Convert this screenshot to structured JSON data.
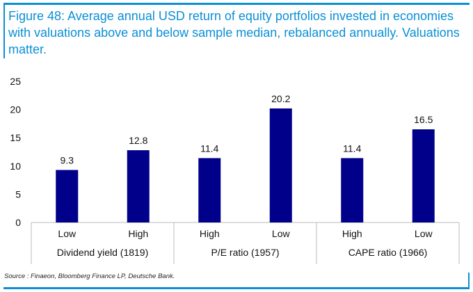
{
  "title": "Figure 48: Average annual USD return of equity portfolios invested in economies with valuations above and below sample median, rebalanced annually. Valuations matter.",
  "source": "Source : Finaeon, Bloomberg Finance LP, Deutsche Bank.",
  "chart_data": {
    "type": "bar",
    "title": "Figure 48: Average annual USD return of equity portfolios invested in economies with valuations above and below sample median, rebalanced annually. Valuations matter.",
    "categories": [
      "Low",
      "High",
      "High",
      "Low",
      "High",
      "Low"
    ],
    "groups": [
      {
        "label": "Dividend yield (1819)",
        "size": 2
      },
      {
        "label": "P/E ratio (1957)",
        "size": 2
      },
      {
        "label": "CAPE ratio (1966)",
        "size": 2
      }
    ],
    "values": [
      9.3,
      12.8,
      11.4,
      20.2,
      11.4,
      16.5
    ],
    "data_labels": [
      "9.3",
      "12.8",
      "11.4",
      "20.2",
      "11.4",
      "16.5"
    ],
    "ylim": [
      0,
      25
    ],
    "yticks": [
      "0",
      "5",
      "10",
      "15",
      "20",
      "25"
    ],
    "grid": false,
    "bar_color": "#00008b",
    "xlabel": "",
    "ylabel": ""
  }
}
